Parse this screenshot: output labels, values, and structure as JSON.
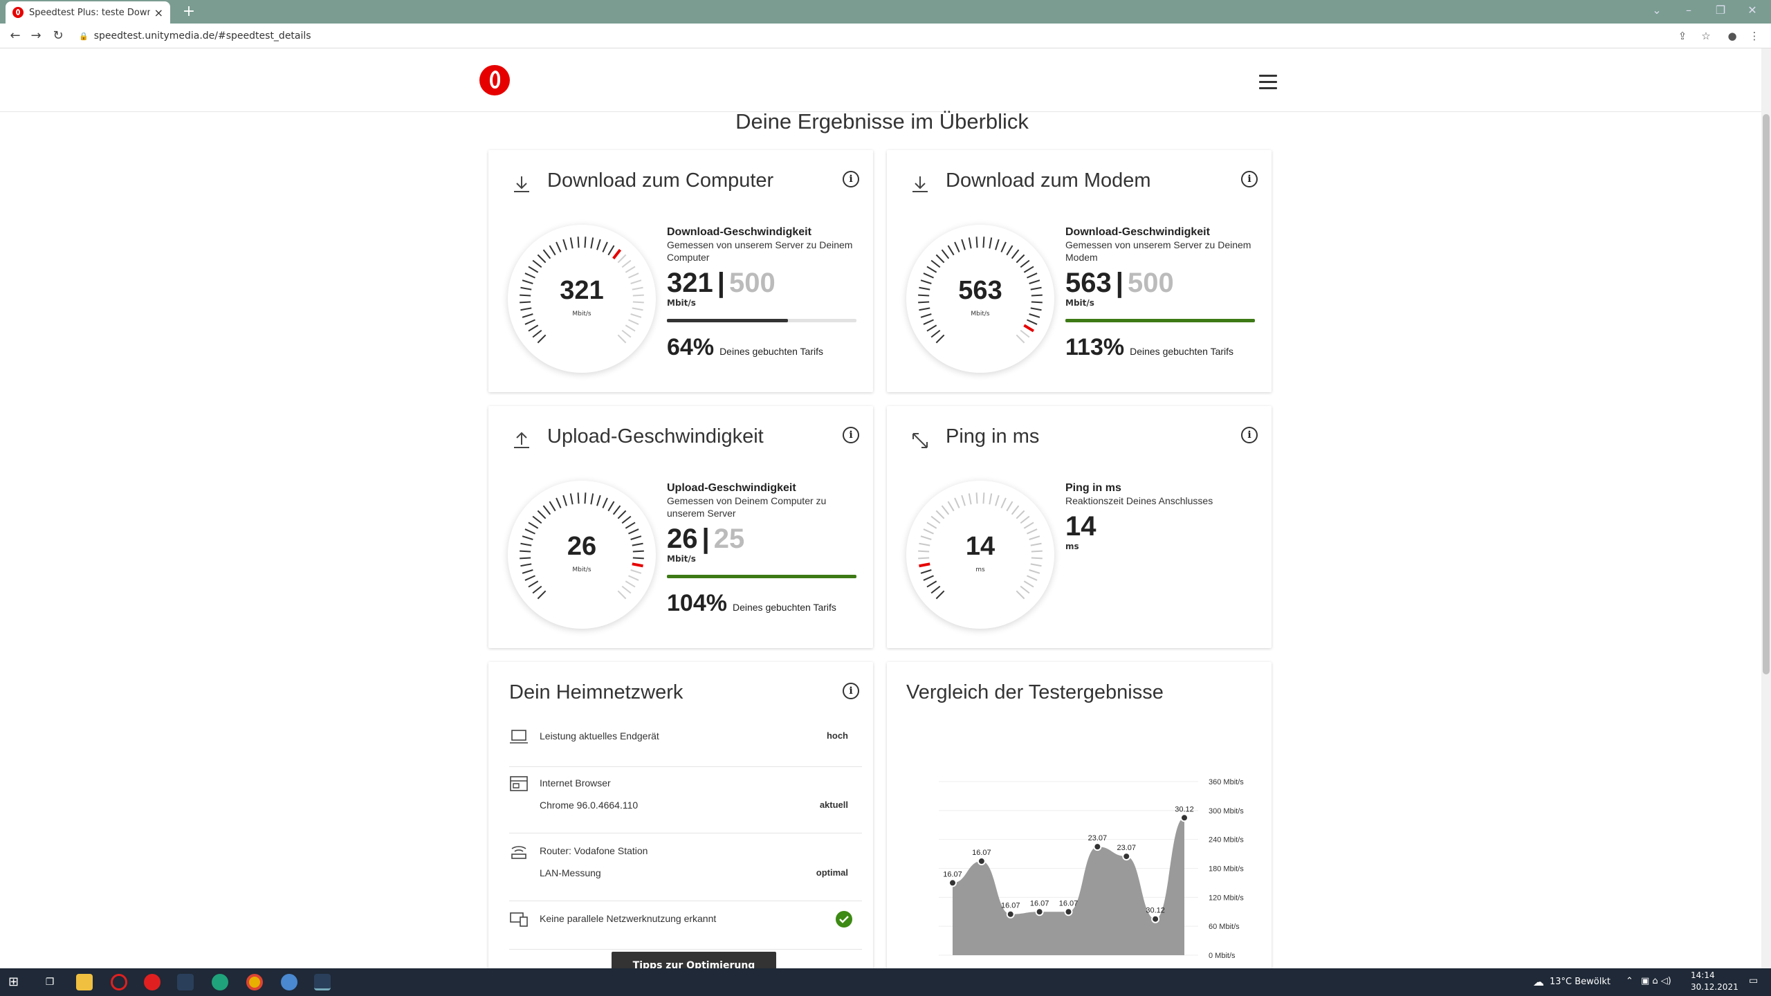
{
  "browser": {
    "tab_title": "Speedtest Plus: teste Download",
    "tab_close": "×",
    "new_tab": "+",
    "url": "speedtest.unitymedia.de/#speedtest_details"
  },
  "page": {
    "title": "Deine Ergebnisse im Überblick"
  },
  "cards": {
    "dl_computer": {
      "title": "Download zum Computer",
      "gauge_value": "321",
      "gauge_unit": "Mbit/s",
      "heading": "Download-Geschwindigkeit",
      "desc": "Gemessen von unserem Server zu Deinem Computer",
      "value": "321",
      "separator": "|",
      "tariff": "500",
      "unit": "Mbit/s",
      "progress": 0.64,
      "percent": "64%",
      "percent_text": "Deines gebuchten Tarifs",
      "bar_color": "#333333"
    },
    "dl_modem": {
      "title": "Download zum Modem",
      "gauge_value": "563",
      "gauge_unit": "Mbit/s",
      "heading": "Download-Geschwindigkeit",
      "desc": "Gemessen von unserem Server zu Deinem Modem",
      "value": "563",
      "separator": "|",
      "tariff": "500",
      "unit": "Mbit/s",
      "progress": 1.0,
      "percent": "113%",
      "percent_text": "Deines gebuchten Tarifs",
      "bar_color": "#3d7a16"
    },
    "upload": {
      "title": "Upload-Geschwindigkeit",
      "gauge_value": "26",
      "gauge_unit": "Mbit/s",
      "heading": "Upload-Geschwindigkeit",
      "desc": "Gemessen von Deinem Computer zu unserem Server",
      "value": "26",
      "separator": "|",
      "tariff": "25",
      "unit": "Mbit/s",
      "progress": 1.0,
      "percent": "104%",
      "percent_text": "Deines gebuchten Tarifs",
      "bar_color": "#3d7a16"
    },
    "ping": {
      "title": "Ping in ms",
      "gauge_value": "14",
      "gauge_unit": "ms",
      "heading": "Ping in ms",
      "desc": "Reaktionszeit Deines Anschlusses",
      "value": "14",
      "unit": "ms"
    }
  },
  "home_network": {
    "title": "Dein Heimnetzwerk",
    "rows": [
      {
        "label": "Leistung aktuelles Endgerät",
        "sub": "",
        "value": "hoch"
      },
      {
        "label": "Internet Browser",
        "sub": "Chrome 96.0.4664.110",
        "value": "aktuell"
      },
      {
        "label": "Router: Vodafone Station",
        "sub": "LAN-Messung",
        "value": "optimal"
      },
      {
        "label": "Keine parallele Netzwerknutzung erkannt",
        "sub": "",
        "value": ""
      }
    ],
    "tips_button": "Tipps zur Optimierung"
  },
  "chart_data": {
    "type": "area",
    "title": "Vergleich der Testergebnisse",
    "x": [
      "16.07",
      "16.07",
      "16.07",
      "16.07",
      "16.07",
      "23.07",
      "23.07",
      "30.12",
      "30.12"
    ],
    "values": [
      150,
      195,
      85,
      90,
      90,
      225,
      205,
      75,
      285
    ],
    "yticks": [
      "360 Mbit/s",
      "300 Mbit/s",
      "240 Mbit/s",
      "180 Mbit/s",
      "120 Mbit/s",
      "60 Mbit/s",
      "0 Mbit/s"
    ],
    "ylim": [
      0,
      360
    ],
    "fill_color": "#9a9a9a"
  },
  "taskbar": {
    "weather": "13°C  Bewölkt",
    "time": "14:14",
    "date": "30.12.2021"
  }
}
